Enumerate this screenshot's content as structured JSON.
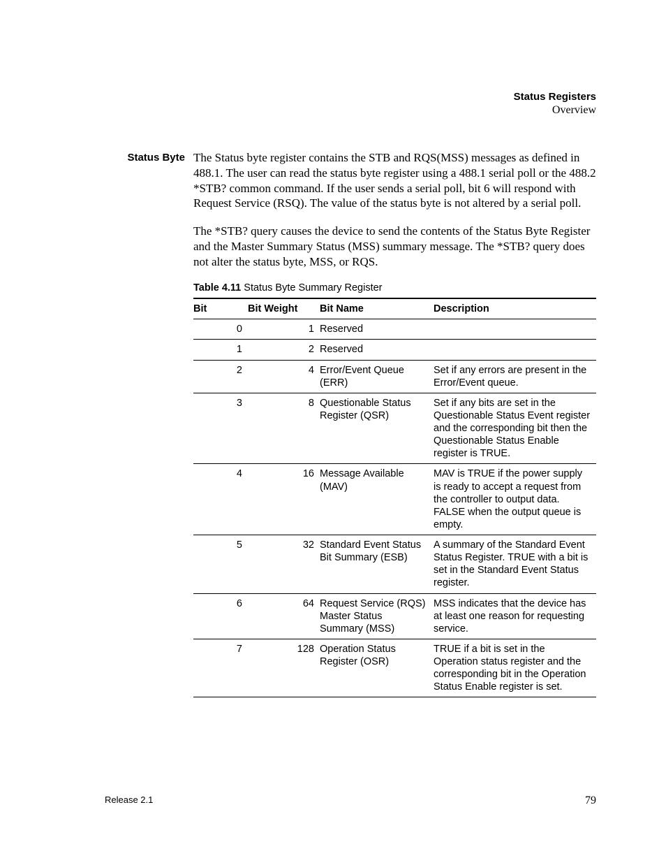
{
  "header": {
    "title": "Status Registers",
    "subtitle": "Overview"
  },
  "section": {
    "side_label": "Status Byte",
    "para1": "The Status byte register contains the STB and RQS(MSS) messages as defined in 488.1. The user can read the status byte register using a 488.1 serial poll or the 488.2 *STB? common command. If the user sends a serial poll, bit 6 will respond with Request Service (RSQ). The value of the status byte is not altered by a serial poll.",
    "para2": "The *STB? query causes the device to send the contents of the Status Byte Register and the Master Summary Status (MSS) summary message. The *STB? query does not alter the status byte, MSS, or RQS."
  },
  "table": {
    "caption_bold": "Table 4.11",
    "caption_rest": " Status Byte Summary Register",
    "columns": [
      "Bit",
      "Bit Weight",
      "Bit Name",
      "Description"
    ],
    "rows": [
      {
        "bit": "0",
        "weight": "1",
        "name": "Reserved",
        "desc": ""
      },
      {
        "bit": "1",
        "weight": "2",
        "name": "Reserved",
        "desc": ""
      },
      {
        "bit": "2",
        "weight": "4",
        "name": "Error/Event Queue (ERR)",
        "desc": "Set if any errors are present in the Error/Event queue."
      },
      {
        "bit": "3",
        "weight": "8",
        "name": "Questionable Status Register (QSR)",
        "desc": "Set if any bits are set in the Questionable Status Event register and the corresponding bit then the Questionable Status Enable register is TRUE."
      },
      {
        "bit": "4",
        "weight": "16",
        "name": "Message Available (MAV)",
        "desc": "MAV is TRUE if the power supply is ready to accept a request from the controller to output data. FALSE when the output queue is empty."
      },
      {
        "bit": "5",
        "weight": "32",
        "name": "Standard Event Status Bit Summary (ESB)",
        "desc": "A summary of the Standard Event Status Register. TRUE with a bit is set in the Standard Event Status register."
      },
      {
        "bit": "6",
        "weight": "64",
        "name": "Request Service (RQS)\nMaster Status Summary (MSS)",
        "desc": "MSS indicates that the device has at least one reason for requesting service."
      },
      {
        "bit": "7",
        "weight": "128",
        "name": "Operation Status Register (OSR)",
        "desc": "TRUE if a bit is set in the Operation status register and the corresponding bit in the Operation Status Enable register is set."
      }
    ]
  },
  "footer": {
    "release": "Release 2.1",
    "page": "79"
  }
}
